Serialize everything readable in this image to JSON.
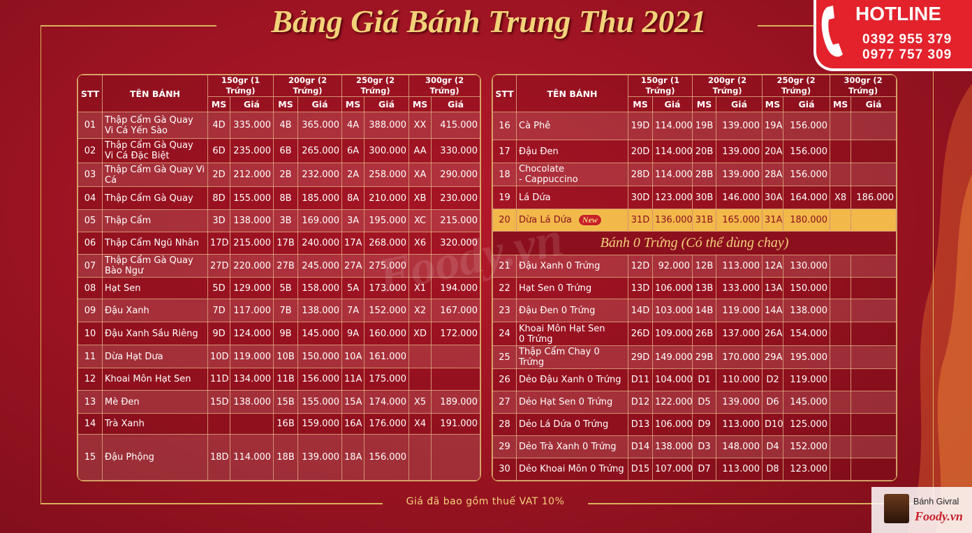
{
  "title": "Bảng Giá Bánh Trung Thu 2021",
  "hotline": {
    "label": "HOTLINE",
    "phones": [
      "0392 955 379",
      "0977 757 309"
    ]
  },
  "header": {
    "stt": "STT",
    "name": "TÊN BÁNH",
    "groups": [
      "150gr (1 Trứng)",
      "200gr (2 Trứng)",
      "250gr (2 Trứng)",
      "300gr (2 Trứng)"
    ],
    "ms": "MS",
    "price": "Giá"
  },
  "left_table": {
    "rows": [
      {
        "stt": "01",
        "name": "Thập Cẩm Gà Quay\nVi Cá Yến Sào",
        "cells": [
          "4D",
          "335.000",
          "4B",
          "365.000",
          "4A",
          "388.000",
          "XX",
          "415.000"
        ]
      },
      {
        "stt": "02",
        "name": "Thập Cẩm Gà Quay\nVi Cá Đặc Biệt",
        "cells": [
          "6D",
          "235.000",
          "6B",
          "265.000",
          "6A",
          "300.000",
          "AA",
          "330.000"
        ]
      },
      {
        "stt": "03",
        "name": "Thập Cẩm Gà Quay Vi Cá",
        "cells": [
          "2D",
          "212.000",
          "2B",
          "232.000",
          "2A",
          "258.000",
          "XA",
          "290.000"
        ]
      },
      {
        "stt": "04",
        "name": "Thập Cẩm Gà Quay",
        "cells": [
          "8D",
          "155.000",
          "8B",
          "185.000",
          "8A",
          "210.000",
          "XB",
          "230.000"
        ]
      },
      {
        "stt": "05",
        "name": "Thập Cẩm",
        "cells": [
          "3D",
          "138.000",
          "3B",
          "169.000",
          "3A",
          "195.000",
          "XC",
          "215.000"
        ]
      },
      {
        "stt": "06",
        "name": "Thập Cẩm Ngũ Nhân",
        "cells": [
          "17D",
          "215.000",
          "17B",
          "240.000",
          "17A",
          "268.000",
          "X6",
          "320.000"
        ]
      },
      {
        "stt": "07",
        "name": "Thập Cẩm Gà Quay\nBào Ngư",
        "cells": [
          "27D",
          "220.000",
          "27B",
          "245.000",
          "27A",
          "275.000",
          null,
          null
        ]
      },
      {
        "stt": "08",
        "name": "Hạt Sen",
        "cells": [
          "5D",
          "129.000",
          "5B",
          "158.000",
          "5A",
          "173.000",
          "X1",
          "194.000"
        ]
      },
      {
        "stt": "09",
        "name": "Đậu Xanh",
        "cells": [
          "7D",
          "117.000",
          "7B",
          "138.000",
          "7A",
          "152.000",
          "X2",
          "167.000"
        ]
      },
      {
        "stt": "10",
        "name": "Đậu Xanh Sầu Riêng",
        "cells": [
          "9D",
          "124.000",
          "9B",
          "145.000",
          "9A",
          "160.000",
          "XD",
          "172.000"
        ]
      },
      {
        "stt": "11",
        "name": "Dừa Hạt Dưa",
        "cells": [
          "10D",
          "119.000",
          "10B",
          "150.000",
          "10A",
          "161.000",
          null,
          null
        ]
      },
      {
        "stt": "12",
        "name": "Khoai Môn Hạt Sen",
        "cells": [
          "11D",
          "134.000",
          "11B",
          "156.000",
          "11A",
          "175.000",
          null,
          null
        ]
      },
      {
        "stt": "13",
        "name": "Mè Đen",
        "cells": [
          "15D",
          "138.000",
          "15B",
          "155.000",
          "15A",
          "174.000",
          "X5",
          "189.000"
        ]
      },
      {
        "stt": "14",
        "name": "Trà Xanh",
        "cells": [
          null,
          null,
          "16B",
          "159.000",
          "16A",
          "176.000",
          "X4",
          "191.000"
        ]
      },
      {
        "stt": "15",
        "name": "Đậu Phộng",
        "cells": [
          "18D",
          "114.000",
          "18B",
          "139.000",
          "18A",
          "156.000",
          null,
          null
        ]
      }
    ]
  },
  "right_table": {
    "rows": [
      {
        "stt": "16",
        "name": "Cà Phê",
        "cells": [
          "19D",
          "114.000",
          "19B",
          "139.000",
          "19A",
          "156.000",
          null,
          null
        ]
      },
      {
        "stt": "17",
        "name": "Đậu Đen",
        "cells": [
          "20D",
          "114.000",
          "20B",
          "139.000",
          "20A",
          "156.000",
          null,
          null
        ]
      },
      {
        "stt": "18",
        "name": "Chocolate\n- Cappuccino",
        "cells": [
          "28D",
          "114.000",
          "28B",
          "139.000",
          "28A",
          "156.000",
          null,
          null
        ]
      },
      {
        "stt": "19",
        "name": "Lá Dứa",
        "cells": [
          "30D",
          "123.000",
          "30B",
          "146.000",
          "30A",
          "164.000",
          "X8",
          "186.000"
        ]
      },
      {
        "stt": "20",
        "name": "Dừa Lá Dứa",
        "badge": "New",
        "highlight": true,
        "cells": [
          "31D",
          "136.000",
          "31B",
          "165.000",
          "31A",
          "180.000",
          null,
          null
        ]
      },
      {
        "section": "Bánh 0 Trứng (Có thể dùng chay)"
      },
      {
        "stt": "21",
        "name": "Đậu Xanh 0 Trứng",
        "cells": [
          "12D",
          "92.000",
          "12B",
          "113.000",
          "12A",
          "130.000",
          null,
          null
        ]
      },
      {
        "stt": "22",
        "name": "Hạt Sen 0 Trứng",
        "cells": [
          "13D",
          "106.000",
          "13B",
          "133.000",
          "13A",
          "150.000",
          null,
          null
        ]
      },
      {
        "stt": "23",
        "name": "Đậu Đen 0 Trứng",
        "cells": [
          "14D",
          "103.000",
          "14B",
          "119.000",
          "14A",
          "138.000",
          null,
          null
        ]
      },
      {
        "stt": "24",
        "name": "Khoai Môn Hạt Sen\n0 Trứng",
        "cells": [
          "26D",
          "109.000",
          "26B",
          "137.000",
          "26A",
          "154.000",
          null,
          null
        ]
      },
      {
        "stt": "25",
        "name": "Thập Cẩm Chay 0 Trứng",
        "cells": [
          "29D",
          "149.000",
          "29B",
          "170.000",
          "29A",
          "195.000",
          null,
          null
        ]
      },
      {
        "stt": "26",
        "name": "Dẻo Đậu Xanh 0 Trứng",
        "cells": [
          "D11",
          "104.000",
          "D1",
          "110.000",
          "D2",
          "119.000",
          null,
          null
        ]
      },
      {
        "stt": "27",
        "name": "Dẻo Hạt Sen 0 Trứng",
        "cells": [
          "D12",
          "122.000",
          "D5",
          "139.000",
          "D6",
          "145.000",
          null,
          null
        ]
      },
      {
        "stt": "28",
        "name": "Dẻo Lá Dứa 0 Trứng",
        "cells": [
          "D13",
          "106.000",
          "D9",
          "113.000",
          "D10",
          "125.000",
          null,
          null
        ]
      },
      {
        "stt": "29",
        "name": "Dẻo Trà Xanh 0 Trứng",
        "cells": [
          "D14",
          "138.000",
          "D3",
          "148.000",
          "D4",
          "152.000",
          null,
          null
        ]
      },
      {
        "stt": "30",
        "name": "Dẻo Khoai Môn 0 Trứng",
        "cells": [
          "D15",
          "107.000",
          "D7",
          "113.000",
          "D8",
          "123.000",
          null,
          null
        ]
      }
    ]
  },
  "footer_note": "Giá đã bao gồm thuế VAT 10%",
  "watermark": "Foody.vn",
  "corner_badge": {
    "name": "Bánh Givral",
    "site": "Foody.vn"
  }
}
